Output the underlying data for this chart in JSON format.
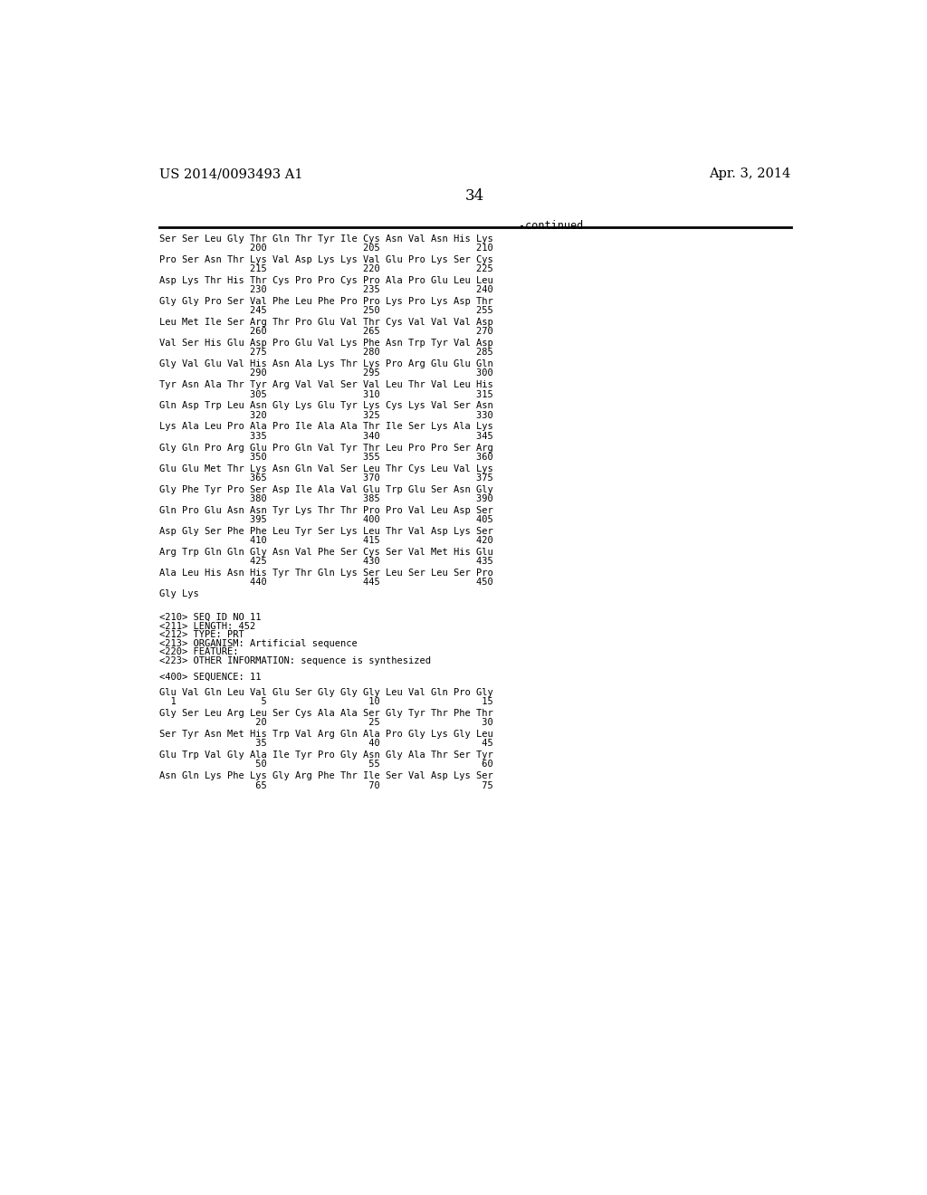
{
  "header_left": "US 2014/0093493 A1",
  "header_right": "Apr. 3, 2014",
  "page_number": "34",
  "continued_label": "-continued",
  "background_color": "#ffffff",
  "text_color": "#000000",
  "content_lines": [
    {
      "type": "seq_line",
      "text": "Ser Ser Leu Gly Thr Gln Thr Tyr Ile Cys Asn Val Asn His Lys",
      "nums": "                200                 205                 210"
    },
    {
      "type": "blank"
    },
    {
      "type": "seq_line",
      "text": "Pro Ser Asn Thr Lys Val Asp Lys Lys Val Glu Pro Lys Ser Cys",
      "nums": "                215                 220                 225"
    },
    {
      "type": "blank"
    },
    {
      "type": "seq_line",
      "text": "Asp Lys Thr His Thr Cys Pro Pro Cys Pro Ala Pro Glu Leu Leu",
      "nums": "                230                 235                 240"
    },
    {
      "type": "blank"
    },
    {
      "type": "seq_line",
      "text": "Gly Gly Pro Ser Val Phe Leu Phe Pro Pro Lys Pro Lys Asp Thr",
      "nums": "                245                 250                 255"
    },
    {
      "type": "blank"
    },
    {
      "type": "seq_line",
      "text": "Leu Met Ile Ser Arg Thr Pro Glu Val Thr Cys Val Val Val Asp",
      "nums": "                260                 265                 270"
    },
    {
      "type": "blank"
    },
    {
      "type": "seq_line",
      "text": "Val Ser His Glu Asp Pro Glu Val Lys Phe Asn Trp Tyr Val Asp",
      "nums": "                275                 280                 285"
    },
    {
      "type": "blank"
    },
    {
      "type": "seq_line",
      "text": "Gly Val Glu Val His Asn Ala Lys Thr Lys Pro Arg Glu Glu Gln",
      "nums": "                290                 295                 300"
    },
    {
      "type": "blank"
    },
    {
      "type": "seq_line",
      "text": "Tyr Asn Ala Thr Tyr Arg Val Val Ser Val Leu Thr Val Leu His",
      "nums": "                305                 310                 315"
    },
    {
      "type": "blank"
    },
    {
      "type": "seq_line",
      "text": "Gln Asp Trp Leu Asn Gly Lys Glu Tyr Lys Cys Lys Val Ser Asn",
      "nums": "                320                 325                 330"
    },
    {
      "type": "blank"
    },
    {
      "type": "seq_line",
      "text": "Lys Ala Leu Pro Ala Pro Ile Ala Ala Thr Ile Ser Lys Ala Lys",
      "nums": "                335                 340                 345"
    },
    {
      "type": "blank"
    },
    {
      "type": "seq_line",
      "text": "Gly Gln Pro Arg Glu Pro Gln Val Tyr Thr Leu Pro Pro Ser Arg",
      "nums": "                350                 355                 360"
    },
    {
      "type": "blank"
    },
    {
      "type": "seq_line",
      "text": "Glu Glu Met Thr Lys Asn Gln Val Ser Leu Thr Cys Leu Val Lys",
      "nums": "                365                 370                 375"
    },
    {
      "type": "blank"
    },
    {
      "type": "seq_line",
      "text": "Gly Phe Tyr Pro Ser Asp Ile Ala Val Glu Trp Glu Ser Asn Gly",
      "nums": "                380                 385                 390"
    },
    {
      "type": "blank"
    },
    {
      "type": "seq_line",
      "text": "Gln Pro Glu Asn Asn Tyr Lys Thr Thr Pro Pro Val Leu Asp Ser",
      "nums": "                395                 400                 405"
    },
    {
      "type": "blank"
    },
    {
      "type": "seq_line",
      "text": "Asp Gly Ser Phe Phe Leu Tyr Ser Lys Leu Thr Val Asp Lys Ser",
      "nums": "                410                 415                 420"
    },
    {
      "type": "blank"
    },
    {
      "type": "seq_line",
      "text": "Arg Trp Gln Gln Gly Asn Val Phe Ser Cys Ser Val Met His Glu",
      "nums": "                425                 430                 435"
    },
    {
      "type": "blank"
    },
    {
      "type": "seq_line",
      "text": "Ala Leu His Asn His Tyr Thr Gln Lys Ser Leu Ser Leu Ser Pro",
      "nums": "                440                 445                 450"
    },
    {
      "type": "blank"
    },
    {
      "type": "short_seq",
      "text": "Gly Lys"
    },
    {
      "type": "blank"
    },
    {
      "type": "blank"
    },
    {
      "type": "meta",
      "text": "<210> SEQ ID NO 11"
    },
    {
      "type": "meta",
      "text": "<211> LENGTH: 452"
    },
    {
      "type": "meta",
      "text": "<212> TYPE: PRT"
    },
    {
      "type": "meta",
      "text": "<213> ORGANISM: Artificial sequence"
    },
    {
      "type": "meta",
      "text": "<220> FEATURE:"
    },
    {
      "type": "meta",
      "text": "<223> OTHER INFORMATION: sequence is synthesized"
    },
    {
      "type": "blank"
    },
    {
      "type": "meta",
      "text": "<400> SEQUENCE: 11"
    },
    {
      "type": "blank"
    },
    {
      "type": "seq_line",
      "text": "Glu Val Gln Leu Val Glu Ser Gly Gly Gly Leu Val Gln Pro Gly",
      "nums": "  1               5                  10                  15"
    },
    {
      "type": "blank"
    },
    {
      "type": "seq_line",
      "text": "Gly Ser Leu Arg Leu Ser Cys Ala Ala Ser Gly Tyr Thr Phe Thr",
      "nums": "                 20                  25                  30"
    },
    {
      "type": "blank"
    },
    {
      "type": "seq_line",
      "text": "Ser Tyr Asn Met His Trp Val Arg Gln Ala Pro Gly Lys Gly Leu",
      "nums": "                 35                  40                  45"
    },
    {
      "type": "blank"
    },
    {
      "type": "seq_line",
      "text": "Glu Trp Val Gly Ala Ile Tyr Pro Gly Asn Gly Ala Thr Ser Tyr",
      "nums": "                 50                  55                  60"
    },
    {
      "type": "blank"
    },
    {
      "type": "seq_line",
      "text": "Asn Gln Lys Phe Lys Gly Arg Phe Thr Ile Ser Val Asp Lys Ser",
      "nums": "                 65                  70                  75"
    }
  ]
}
